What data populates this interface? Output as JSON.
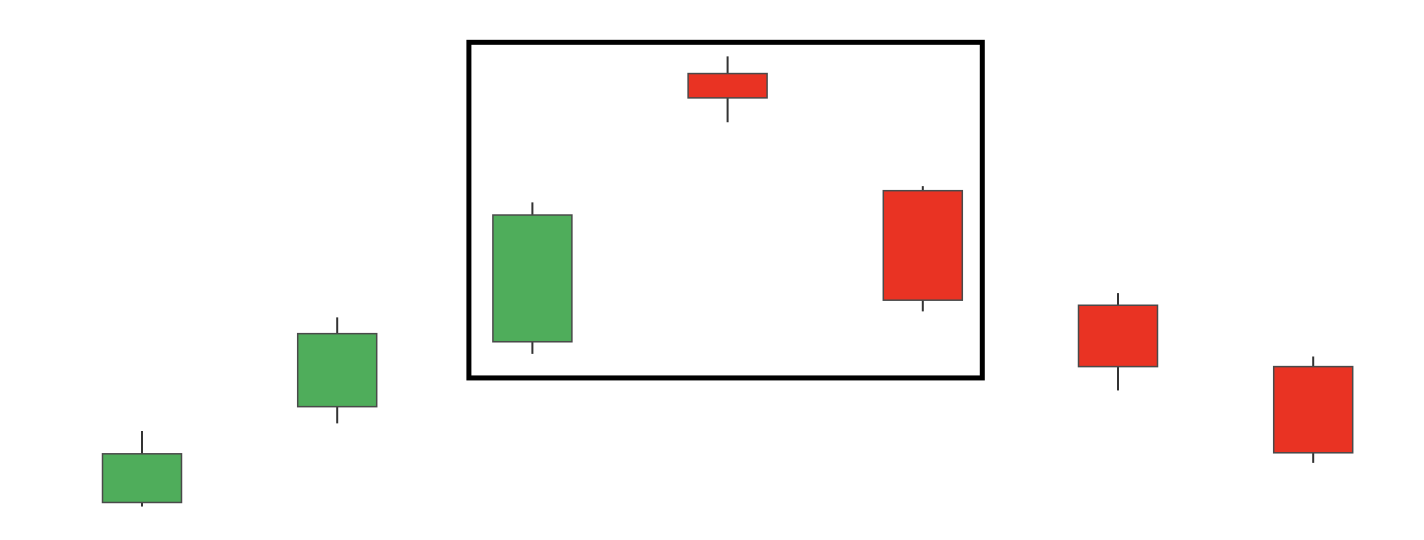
{
  "chart_data": {
    "type": "candlestick",
    "title": "",
    "xlabel": "",
    "ylabel": "",
    "ylim": [
      0,
      100
    ],
    "grid": false,
    "legend": "none",
    "colors": {
      "up": "#4fad5b",
      "down": "#e93323",
      "wick": "#333333",
      "highlight_box": "#000000",
      "background": "#ffffff"
    },
    "candles": [
      {
        "open": 7.4,
        "close": 17.0,
        "high": 21.5,
        "low": 6.6,
        "direction": "up"
      },
      {
        "open": 26.3,
        "close": 40.7,
        "high": 43.9,
        "low": 23.0,
        "direction": "up"
      },
      {
        "open": 39.1,
        "close": 64.1,
        "high": 66.6,
        "low": 36.7,
        "direction": "up"
      },
      {
        "open": 92.0,
        "close": 87.2,
        "high": 95.4,
        "low": 82.4,
        "direction": "down"
      },
      {
        "open": 68.9,
        "close": 47.3,
        "high": 69.8,
        "low": 45.1,
        "direction": "down"
      },
      {
        "open": 46.3,
        "close": 34.2,
        "high": 48.7,
        "low": 29.5,
        "direction": "down"
      },
      {
        "open": 34.2,
        "close": 17.2,
        "high": 36.2,
        "low": 15.2,
        "direction": "down"
      }
    ],
    "highlight": {
      "from_index": 2,
      "to_index": 4,
      "style": "rectangle"
    }
  }
}
